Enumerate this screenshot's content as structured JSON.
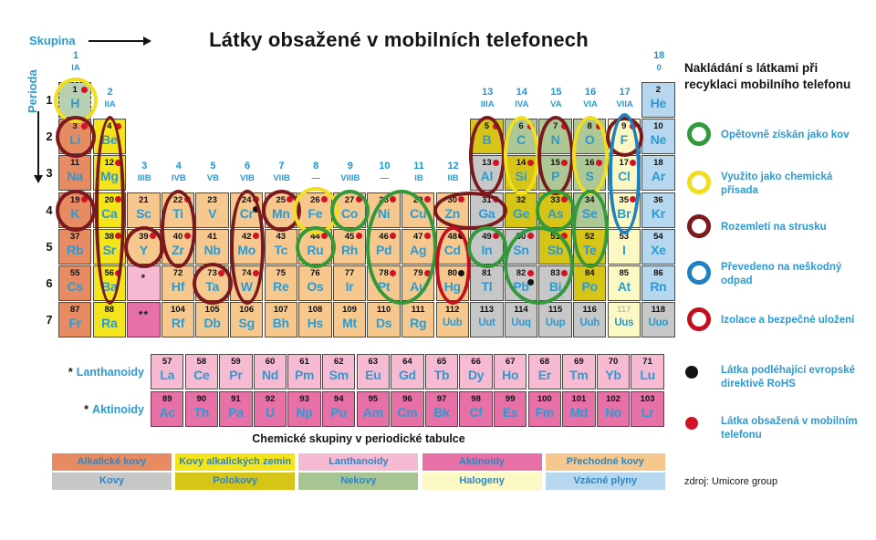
{
  "title": "Látky obsažené v mobilních telefonech",
  "axis": {
    "group_label": "Skupina",
    "period_label": "Perioda",
    "period_numbers": [
      "1",
      "2",
      "3",
      "4",
      "5",
      "6",
      "7"
    ]
  },
  "group_headers": [
    {
      "num": "1",
      "label": "IA"
    },
    {
      "num": "2",
      "label": "IIA"
    },
    {
      "num": "3",
      "label": "IIIB"
    },
    {
      "num": "4",
      "label": "IVB"
    },
    {
      "num": "5",
      "label": "VB"
    },
    {
      "num": "6",
      "label": "VIB"
    },
    {
      "num": "7",
      "label": "VIIB"
    },
    {
      "num": "8",
      "label": "—"
    },
    {
      "num": "9",
      "label": "VIIIB"
    },
    {
      "num": "10",
      "label": "—"
    },
    {
      "num": "11",
      "label": "IB"
    },
    {
      "num": "12",
      "label": "IIB"
    },
    {
      "num": "13",
      "label": "IIIA"
    },
    {
      "num": "14",
      "label": "IVA"
    },
    {
      "num": "15",
      "label": "VA"
    },
    {
      "num": "16",
      "label": "VIA"
    },
    {
      "num": "17",
      "label": "VIIA"
    },
    {
      "num": "18",
      "label": "0"
    }
  ],
  "palette": {
    "h": "#b9cfb2",
    "alkali": "#e78b63",
    "alkearth": "#f3e41c",
    "trans": "#f6c88e",
    "metal": "#c7c7c7",
    "metalloid": "#d6c416",
    "nonmetal": "#adc795",
    "halogen": "#fcf8c3",
    "noble": "#b6d7ee",
    "lan": "#f6bbd3",
    "act": "#e771a6"
  },
  "dot_colors": {
    "red": "#d31225",
    "black": "#141414"
  },
  "ring_colors": {
    "green": "#33993a",
    "yellow": "#f0df1e",
    "maroon": "#7b1a1e",
    "blue": "#1e82c2",
    "red": "#c3101f"
  },
  "elements": [
    {
      "s": "H",
      "n": 1,
      "g": 1,
      "p": 1,
      "c": "h",
      "d": "r"
    },
    {
      "s": "He",
      "n": 2,
      "g": 18,
      "p": 1,
      "c": "noble"
    },
    {
      "s": "Li",
      "n": 3,
      "g": 1,
      "p": 2,
      "c": "alkali",
      "d": "r"
    },
    {
      "s": "Be",
      "n": 4,
      "g": 2,
      "p": 2,
      "c": "alkearth",
      "d": "r"
    },
    {
      "s": "B",
      "n": 5,
      "g": 13,
      "p": 2,
      "c": "metalloid",
      "d": "r"
    },
    {
      "s": "C",
      "n": 6,
      "g": 14,
      "p": 2,
      "c": "nonmetal",
      "d": "r"
    },
    {
      "s": "N",
      "n": 7,
      "g": 15,
      "p": 2,
      "c": "nonmetal",
      "d": "r"
    },
    {
      "s": "O",
      "n": 8,
      "g": 16,
      "p": 2,
      "c": "nonmetal",
      "d": "r"
    },
    {
      "s": "F",
      "n": 9,
      "g": 17,
      "p": 2,
      "c": "halogen",
      "d": "r"
    },
    {
      "s": "Ne",
      "n": 10,
      "g": 18,
      "p": 2,
      "c": "noble"
    },
    {
      "s": "Na",
      "n": 11,
      "g": 1,
      "p": 3,
      "c": "alkali"
    },
    {
      "s": "Mg",
      "n": 12,
      "g": 2,
      "p": 3,
      "c": "alkearth",
      "d": "r"
    },
    {
      "s": "Al",
      "n": 13,
      "g": 13,
      "p": 3,
      "c": "metal",
      "d": "r"
    },
    {
      "s": "Si",
      "n": 14,
      "g": 14,
      "p": 3,
      "c": "metalloid",
      "d": "r"
    },
    {
      "s": "P",
      "n": 15,
      "g": 15,
      "p": 3,
      "c": "nonmetal",
      "d": "r"
    },
    {
      "s": "S",
      "n": 16,
      "g": 16,
      "p": 3,
      "c": "nonmetal",
      "d": "r"
    },
    {
      "s": "Cl",
      "n": 17,
      "g": 17,
      "p": 3,
      "c": "halogen",
      "d": "r"
    },
    {
      "s": "Ar",
      "n": 18,
      "g": 18,
      "p": 3,
      "c": "noble"
    },
    {
      "s": "K",
      "n": 19,
      "g": 1,
      "p": 4,
      "c": "alkali",
      "d": "r"
    },
    {
      "s": "Ca",
      "n": 20,
      "g": 2,
      "p": 4,
      "c": "alkearth",
      "d": "r"
    },
    {
      "s": "Sc",
      "n": 21,
      "g": 3,
      "p": 4,
      "c": "trans"
    },
    {
      "s": "Ti",
      "n": 22,
      "g": 4,
      "p": 4,
      "c": "trans",
      "d": "r"
    },
    {
      "s": "V",
      "n": 23,
      "g": 5,
      "p": 4,
      "c": "trans"
    },
    {
      "s": "Cr",
      "n": 24,
      "g": 6,
      "p": 4,
      "c": "trans",
      "d": "rb"
    },
    {
      "s": "Mn",
      "n": 25,
      "g": 7,
      "p": 4,
      "c": "trans",
      "d": "r"
    },
    {
      "s": "Fe",
      "n": 26,
      "g": 8,
      "p": 4,
      "c": "trans",
      "d": "r"
    },
    {
      "s": "Co",
      "n": 27,
      "g": 9,
      "p": 4,
      "c": "trans",
      "d": "r"
    },
    {
      "s": "Ni",
      "n": 28,
      "g": 10,
      "p": 4,
      "c": "trans",
      "d": "r"
    },
    {
      "s": "Cu",
      "n": 29,
      "g": 11,
      "p": 4,
      "c": "trans",
      "d": "r"
    },
    {
      "s": "Zn",
      "n": 30,
      "g": 12,
      "p": 4,
      "c": "trans",
      "d": "r"
    },
    {
      "s": "Ga",
      "n": 31,
      "g": 13,
      "p": 4,
      "c": "metal",
      "d": "r"
    },
    {
      "s": "Ge",
      "n": 32,
      "g": 14,
      "p": 4,
      "c": "metalloid"
    },
    {
      "s": "As",
      "n": 33,
      "g": 15,
      "p": 4,
      "c": "metalloid",
      "d": "r"
    },
    {
      "s": "Se",
      "n": 34,
      "g": 16,
      "p": 4,
      "c": "nonmetal"
    },
    {
      "s": "Br",
      "n": 35,
      "g": 17,
      "p": 4,
      "c": "halogen",
      "d": "r"
    },
    {
      "s": "Kr",
      "n": 36,
      "g": 18,
      "p": 4,
      "c": "noble"
    },
    {
      "s": "Rb",
      "n": 37,
      "g": 1,
      "p": 5,
      "c": "alkali"
    },
    {
      "s": "Sr",
      "n": 38,
      "g": 2,
      "p": 5,
      "c": "alkearth",
      "d": "r"
    },
    {
      "s": "Y",
      "n": 39,
      "g": 3,
      "p": 5,
      "c": "trans",
      "d": "r"
    },
    {
      "s": "Zr",
      "n": 40,
      "g": 4,
      "p": 5,
      "c": "trans",
      "d": "r"
    },
    {
      "s": "Nb",
      "n": 41,
      "g": 5,
      "p": 5,
      "c": "trans"
    },
    {
      "s": "Mo",
      "n": 42,
      "g": 6,
      "p": 5,
      "c": "trans",
      "d": "r"
    },
    {
      "s": "Tc",
      "n": 43,
      "g": 7,
      "p": 5,
      "c": "trans"
    },
    {
      "s": "Ru",
      "n": 44,
      "g": 8,
      "p": 5,
      "c": "trans",
      "d": "r"
    },
    {
      "s": "Rh",
      "n": 45,
      "g": 9,
      "p": 5,
      "c": "trans",
      "d": "r"
    },
    {
      "s": "Pd",
      "n": 46,
      "g": 10,
      "p": 5,
      "c": "trans",
      "d": "r"
    },
    {
      "s": "Ag",
      "n": 47,
      "g": 11,
      "p": 5,
      "c": "trans",
      "d": "r"
    },
    {
      "s": "Cd",
      "n": 48,
      "g": 12,
      "p": 5,
      "c": "trans",
      "d": "b"
    },
    {
      "s": "In",
      "n": 49,
      "g": 13,
      "p": 5,
      "c": "metal",
      "d": "r"
    },
    {
      "s": "Sn",
      "n": 50,
      "g": 14,
      "p": 5,
      "c": "metal",
      "d": "r"
    },
    {
      "s": "Sb",
      "n": 51,
      "g": 15,
      "p": 5,
      "c": "metalloid",
      "d": "r"
    },
    {
      "s": "Te",
      "n": 52,
      "g": 16,
      "p": 5,
      "c": "metalloid"
    },
    {
      "s": "I",
      "n": 53,
      "g": 17,
      "p": 5,
      "c": "halogen"
    },
    {
      "s": "Xe",
      "n": 54,
      "g": 18,
      "p": 5,
      "c": "noble"
    },
    {
      "s": "Cs",
      "n": 55,
      "g": 1,
      "p": 6,
      "c": "alkali"
    },
    {
      "s": "Ba",
      "n": 56,
      "g": 2,
      "p": 6,
      "c": "alkearth",
      "d": "r"
    },
    {
      "s": "Hf",
      "n": 72,
      "g": 4,
      "p": 6,
      "c": "trans"
    },
    {
      "s": "Ta",
      "n": 73,
      "g": 5,
      "p": 6,
      "c": "trans",
      "d": "r"
    },
    {
      "s": "W",
      "n": 74,
      "g": 6,
      "p": 6,
      "c": "trans",
      "d": "r"
    },
    {
      "s": "Re",
      "n": 75,
      "g": 7,
      "p": 6,
      "c": "trans"
    },
    {
      "s": "Os",
      "n": 76,
      "g": 8,
      "p": 6,
      "c": "trans"
    },
    {
      "s": "Ir",
      "n": 77,
      "g": 9,
      "p": 6,
      "c": "trans"
    },
    {
      "s": "Pt",
      "n": 78,
      "g": 10,
      "p": 6,
      "c": "trans",
      "d": "r"
    },
    {
      "s": "Au",
      "n": 79,
      "g": 11,
      "p": 6,
      "c": "trans",
      "d": "r"
    },
    {
      "s": "Hg",
      "n": 80,
      "g": 12,
      "p": 6,
      "c": "trans",
      "d": "b"
    },
    {
      "s": "Tl",
      "n": 81,
      "g": 13,
      "p": 6,
      "c": "metal"
    },
    {
      "s": "Pb",
      "n": 82,
      "g": 14,
      "p": 6,
      "c": "metal",
      "d": "rb"
    },
    {
      "s": "Bi",
      "n": 83,
      "g": 15,
      "p": 6,
      "c": "metal",
      "d": "r"
    },
    {
      "s": "Po",
      "n": 84,
      "g": 16,
      "p": 6,
      "c": "metalloid"
    },
    {
      "s": "At",
      "n": 85,
      "g": 17,
      "p": 6,
      "c": "halogen"
    },
    {
      "s": "Rn",
      "n": 86,
      "g": 18,
      "p": 6,
      "c": "noble"
    },
    {
      "s": "Fr",
      "n": 87,
      "g": 1,
      "p": 7,
      "c": "alkali"
    },
    {
      "s": "Ra",
      "n": 88,
      "g": 2,
      "p": 7,
      "c": "alkearth"
    },
    {
      "s": "Rf",
      "n": 104,
      "g": 4,
      "p": 7,
      "c": "trans"
    },
    {
      "s": "Db",
      "n": 105,
      "g": 5,
      "p": 7,
      "c": "trans"
    },
    {
      "s": "Sg",
      "n": 106,
      "g": 6,
      "p": 7,
      "c": "trans"
    },
    {
      "s": "Bh",
      "n": 107,
      "g": 7,
      "p": 7,
      "c": "trans"
    },
    {
      "s": "Hs",
      "n": 108,
      "g": 8,
      "p": 7,
      "c": "trans"
    },
    {
      "s": "Mt",
      "n": 109,
      "g": 9,
      "p": 7,
      "c": "trans"
    },
    {
      "s": "Ds",
      "n": 110,
      "g": 10,
      "p": 7,
      "c": "trans"
    },
    {
      "s": "Rg",
      "n": 111,
      "g": 11,
      "p": 7,
      "c": "trans"
    },
    {
      "s": "Uub",
      "n": 112,
      "g": 12,
      "p": 7,
      "c": "trans"
    },
    {
      "s": "Uut",
      "n": 113,
      "g": 13,
      "p": 7,
      "c": "metal"
    },
    {
      "s": "Uuq",
      "n": 114,
      "g": 14,
      "p": 7,
      "c": "metal"
    },
    {
      "s": "Uup",
      "n": 115,
      "g": 15,
      "p": 7,
      "c": "metal"
    },
    {
      "s": "Uuh",
      "n": 116,
      "g": 16,
      "p": 7,
      "c": "metal"
    },
    {
      "s": "Uus",
      "n": 117,
      "g": 17,
      "p": 7,
      "c": "halogen",
      "f": 1
    },
    {
      "s": "Uuo",
      "n": 118,
      "g": 18,
      "p": 7,
      "c": "metal"
    }
  ],
  "placeholders": [
    {
      "p": 6,
      "g": 3,
      "text": "*",
      "c": "lan"
    },
    {
      "p": 7,
      "g": 3,
      "text": "**",
      "c": "act"
    }
  ],
  "fblock": {
    "lan_star": "*",
    "lan_label": "Lanthanoidy",
    "act_star": "*",
    "act_label": "Aktinoidy",
    "lanthanoids": [
      {
        "s": "La",
        "n": 57
      },
      {
        "s": "Ce",
        "n": 58
      },
      {
        "s": "Pr",
        "n": 59
      },
      {
        "s": "Nd",
        "n": 60
      },
      {
        "s": "Pm",
        "n": 61
      },
      {
        "s": "Sm",
        "n": 62
      },
      {
        "s": "Eu",
        "n": 63
      },
      {
        "s": "Gd",
        "n": 64
      },
      {
        "s": "Tb",
        "n": 65
      },
      {
        "s": "Dy",
        "n": 66
      },
      {
        "s": "Ho",
        "n": 67
      },
      {
        "s": "Er",
        "n": 68
      },
      {
        "s": "Tm",
        "n": 69
      },
      {
        "s": "Yb",
        "n": 70
      },
      {
        "s": "Lu",
        "n": 71
      }
    ],
    "actinoids": [
      {
        "s": "Ac",
        "n": 89
      },
      {
        "s": "Th",
        "n": 90
      },
      {
        "s": "Pa",
        "n": 91
      },
      {
        "s": "U",
        "n": 92
      },
      {
        "s": "Np",
        "n": 93
      },
      {
        "s": "Pu",
        "n": 94
      },
      {
        "s": "Am",
        "n": 95
      },
      {
        "s": "Cm",
        "n": 96
      },
      {
        "s": "Bk",
        "n": 97
      },
      {
        "s": "Cf",
        "n": 98
      },
      {
        "s": "Es",
        "n": 99
      },
      {
        "s": "Fm",
        "n": 100
      },
      {
        "s": "Md",
        "n": 101
      },
      {
        "s": "No",
        "n": 102
      },
      {
        "s": "Lr",
        "n": 103
      }
    ]
  },
  "circles": [
    {
      "color": "yellow",
      "c1": 1,
      "c2": 1,
      "r1": 1,
      "r2": 1,
      "ix": -2,
      "iy": -2
    },
    {
      "color": "maroon",
      "c1": 1,
      "c2": 1,
      "r1": 2,
      "r2": 2
    },
    {
      "color": "maroon",
      "c1": 2,
      "c2": 2,
      "r1": 2,
      "r2": 6,
      "ix": 5
    },
    {
      "color": "maroon",
      "c1": 1,
      "c2": 1,
      "r1": 4,
      "r2": 4
    },
    {
      "color": "maroon",
      "c1": 3,
      "c2": 3,
      "r1": 5,
      "r2": 5
    },
    {
      "color": "maroon",
      "c1": 4,
      "c2": 4,
      "r1": 4,
      "r2": 5,
      "ix": 2
    },
    {
      "color": "maroon",
      "c1": 5,
      "c2": 5,
      "r1": 6,
      "r2": 6
    },
    {
      "color": "maroon",
      "c1": 6,
      "c2": 6,
      "r1": 4,
      "r2": 6,
      "ix": 3
    },
    {
      "color": "maroon",
      "c1": 7,
      "c2": 7,
      "r1": 4,
      "r2": 4
    },
    {
      "color": "yellow",
      "c1": 8,
      "c2": 8,
      "r1": 4,
      "r2": 4,
      "ix": -3,
      "iy": -3
    },
    {
      "color": "green",
      "c1": 9,
      "c2": 9,
      "r1": 4,
      "r2": 4
    },
    {
      "color": "green",
      "c1": 8,
      "c2": 8,
      "r1": 5,
      "r2": 5
    },
    {
      "color": "green",
      "c1": 10,
      "c2": 11,
      "r1": 4,
      "r2": 6,
      "ix": 2
    },
    {
      "color": "maroon",
      "c1": 12,
      "c2": 13,
      "r1": 4,
      "r2": 4,
      "iy": 2
    },
    {
      "color": "red",
      "c1": 12,
      "c2": 12,
      "r1": 5,
      "r2": 6,
      "ix": 2
    },
    {
      "color": "green",
      "c1": 13,
      "c2": 13,
      "r1": 5,
      "r2": 5
    },
    {
      "color": "green",
      "c1": 14,
      "c2": 15,
      "r1": 5,
      "r2": 6,
      "ix": 2
    },
    {
      "color": "maroon",
      "c1": 13,
      "c2": 13,
      "r1": 2,
      "r2": 3,
      "ix": 2
    },
    {
      "color": "yellow",
      "c1": 14,
      "c2": 14,
      "r1": 2,
      "r2": 3,
      "ix": 2
    },
    {
      "color": "maroon",
      "c1": 15,
      "c2": 15,
      "r1": 2,
      "r2": 3,
      "ix": 2
    },
    {
      "color": "yellow",
      "c1": 16,
      "c2": 16,
      "r1": 2,
      "r2": 3,
      "ix": 2
    },
    {
      "color": "maroon",
      "c1": 17,
      "c2": 17,
      "r1": 2,
      "r2": 2,
      "ix": 1,
      "iy": 1
    },
    {
      "color": "blue",
      "c1": 17,
      "c2": 17,
      "r1": 2,
      "r2": 4,
      "ix": 4,
      "iy": -3
    },
    {
      "color": "green",
      "c1": 15,
      "c2": 15,
      "r1": 4,
      "r2": 4
    },
    {
      "color": "green",
      "c1": 16,
      "c2": 16,
      "r1": 4,
      "r2": 5,
      "ix": 2
    }
  ],
  "recycling_legend": {
    "title_line1": "Nakládání s látkami při",
    "title_line2": "recyklaci mobilního telefonu",
    "items": [
      {
        "shape": "ring",
        "color": "#33993a",
        "lines": [
          "Opětovně získán jako kov"
        ]
      },
      {
        "shape": "ring",
        "color": "#f0df1e",
        "lines": [
          "Využito jako chemická",
          "přísada"
        ]
      },
      {
        "shape": "ring",
        "color": "#7b1a1e",
        "lines": [
          "Rozemletí na strusku"
        ]
      },
      {
        "shape": "ring",
        "color": "#1e82c2",
        "lines": [
          "Převedeno na neškodný",
          "odpad"
        ]
      },
      {
        "shape": "ring",
        "color": "#c3101f",
        "lines": [
          "Izolace a bezpečné uložení"
        ]
      },
      {
        "shape": "dot",
        "color": "#141414",
        "lines": [
          "Látka podléhající evropské",
          "direktivě RoHS"
        ]
      },
      {
        "shape": "dot",
        "color": "#d31225",
        "lines": [
          "Látka obsažená v mobilním",
          "telefonu"
        ]
      }
    ]
  },
  "groups_legend": {
    "title": "Chemické skupiny v periodické tabulce",
    "rows": [
      [
        {
          "label": "Alkalické kovy",
          "color": "#e78b63"
        },
        {
          "label": "Kovy alkalických zemin",
          "color": "#f3e41c"
        },
        {
          "label": "Lanthanoidy",
          "color": "#f6bbd3"
        },
        {
          "label": "Aktinoidy",
          "color": "#e771a6"
        },
        {
          "label": "Přechodné kovy",
          "color": "#f6c88e"
        }
      ],
      [
        {
          "label": "Kovy",
          "color": "#c7c7c7"
        },
        {
          "label": "Polokovy",
          "color": "#d6c416"
        },
        {
          "label": "Nekovy",
          "color": "#a9c493"
        },
        {
          "label": "Halogeny",
          "color": "#fcf8c3"
        },
        {
          "label": "Vzácné plyny",
          "color": "#b6d7ee"
        }
      ]
    ]
  },
  "source": "zdroj: Umicore group"
}
